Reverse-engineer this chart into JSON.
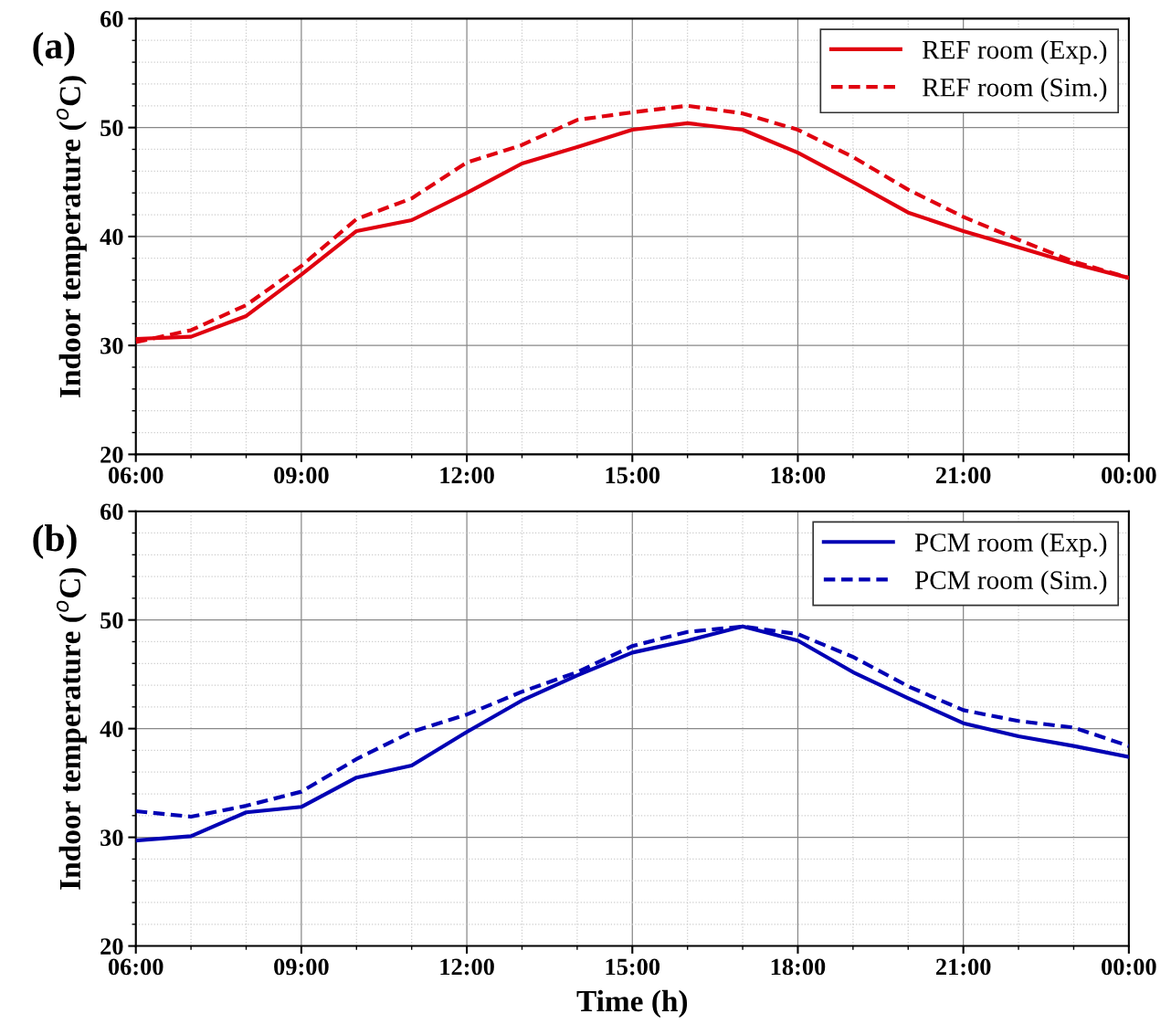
{
  "chart_data": [
    {
      "type": "line",
      "ylabel": "Indoor temperature ($^{o}$C)",
      "annotations": [
        "(a)"
      ],
      "x": [
        6,
        7,
        8,
        9,
        10,
        11,
        12,
        13,
        14,
        15,
        16,
        17,
        18,
        19,
        20,
        21,
        22,
        23,
        24
      ],
      "series": [
        {
          "name": "REF room (Exp.)",
          "color": "#e0000f",
          "line_style": "solid",
          "values": [
            30.6,
            30.8,
            32.7,
            36.5,
            40.5,
            41.5,
            44.0,
            46.7,
            48.2,
            49.8,
            50.4,
            49.8,
            47.7,
            45.0,
            42.2,
            40.5,
            39.0,
            37.5,
            36.2
          ]
        },
        {
          "name": "REF room (Sim.)",
          "color": "#e0000f",
          "line_style": "dashed",
          "values": [
            30.3,
            31.4,
            33.7,
            37.3,
            41.6,
            43.5,
            46.8,
            48.4,
            50.7,
            51.4,
            52.0,
            51.3,
            49.8,
            47.3,
            44.3,
            41.8,
            39.7,
            37.7,
            36.2
          ]
        }
      ],
      "xlim": [
        6,
        24
      ],
      "xticks": [
        {
          "value": 6,
          "label": "06:00"
        },
        {
          "value": 9,
          "label": "09:00"
        },
        {
          "value": 12,
          "label": "12:00"
        },
        {
          "value": 15,
          "label": "15:00"
        },
        {
          "value": 18,
          "label": "18:00"
        },
        {
          "value": 21,
          "label": "21:00"
        },
        {
          "value": 24,
          "label": "00:00"
        }
      ],
      "ylim": [
        20,
        60
      ],
      "yticks": [
        20,
        30,
        40,
        50,
        60
      ],
      "grid": true,
      "legend": "top right",
      "marker": "none"
    },
    {
      "type": "line",
      "xlabel": "Time (h)",
      "ylabel": "Indoor temperature ($^{o}$C)",
      "annotations": [
        "(b)"
      ],
      "x": [
        6,
        7,
        8,
        9,
        10,
        11,
        12,
        13,
        14,
        15,
        16,
        17,
        18,
        19,
        20,
        21,
        22,
        23,
        24
      ],
      "series": [
        {
          "name": "PCM room (Exp.)",
          "color": "#0000b4",
          "line_style": "solid",
          "values": [
            29.7,
            30.1,
            32.3,
            32.8,
            35.5,
            36.6,
            39.7,
            42.6,
            44.9,
            47.0,
            48.1,
            49.4,
            48.1,
            45.2,
            42.8,
            40.5,
            39.3,
            38.4,
            37.4
          ]
        },
        {
          "name": "PCM room (Sim.)",
          "color": "#0000b4",
          "line_style": "dashed",
          "values": [
            32.4,
            31.9,
            32.9,
            34.2,
            37.2,
            39.7,
            41.3,
            43.4,
            45.2,
            47.6,
            48.9,
            49.4,
            48.7,
            46.6,
            43.9,
            41.7,
            40.7,
            40.1,
            38.4
          ]
        }
      ],
      "xlim": [
        6,
        24
      ],
      "xticks": [
        {
          "value": 6,
          "label": "06:00"
        },
        {
          "value": 9,
          "label": "09:00"
        },
        {
          "value": 12,
          "label": "12:00"
        },
        {
          "value": 15,
          "label": "15:00"
        },
        {
          "value": 18,
          "label": "18:00"
        },
        {
          "value": 21,
          "label": "21:00"
        },
        {
          "value": 24,
          "label": "00:00"
        }
      ],
      "ylim": [
        20,
        60
      ],
      "yticks": [
        20,
        30,
        40,
        50,
        60
      ],
      "grid": true,
      "legend": "top right",
      "marker": "none"
    }
  ]
}
